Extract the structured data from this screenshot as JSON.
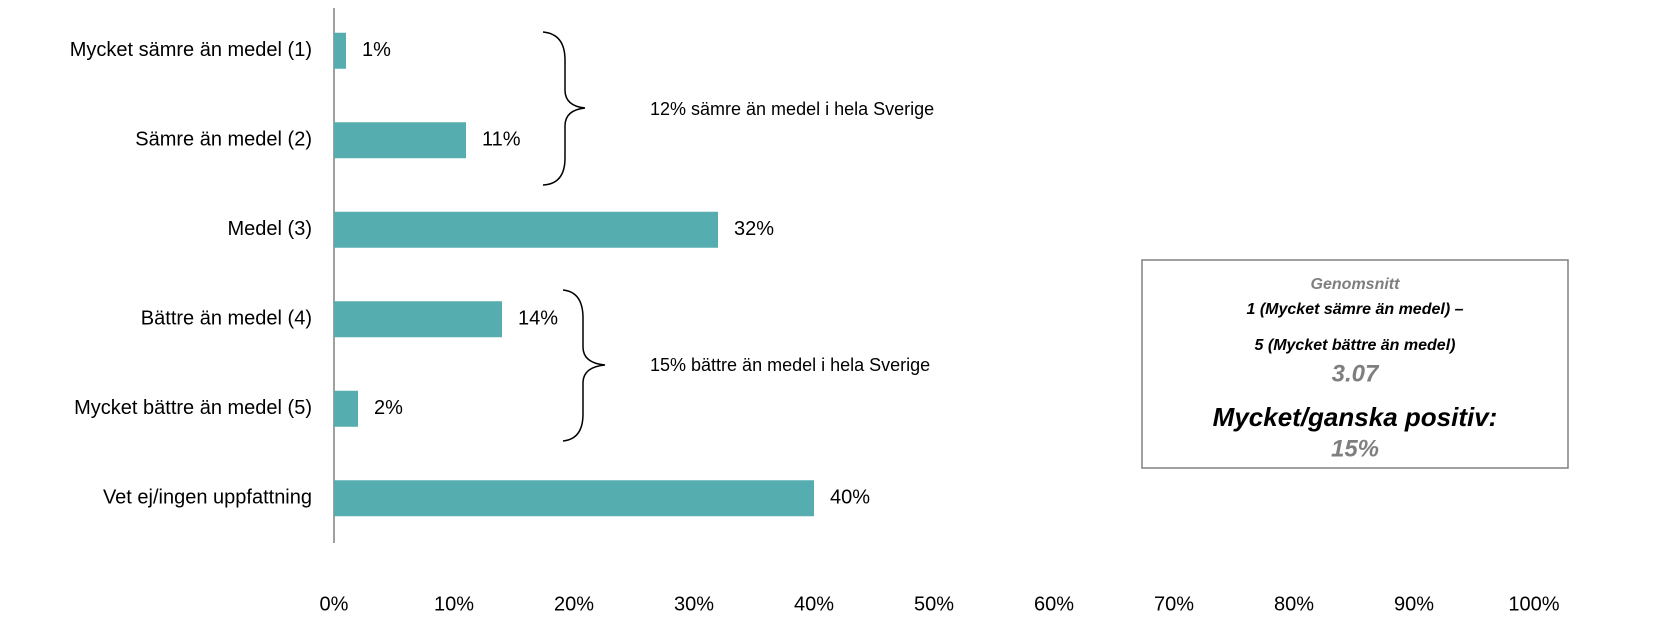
{
  "chart_data": {
    "type": "barh",
    "categories": [
      "Mycket sämre än medel (1)",
      "Sämre än medel (2)",
      "Medel (3)",
      "Bättre än medel (4)",
      "Mycket bättre än medel (5)",
      "Vet ej/ingen uppfattning"
    ],
    "values": [
      1,
      11,
      32,
      14,
      2,
      40
    ],
    "value_labels": [
      "1%",
      "11%",
      "32%",
      "14%",
      "2%",
      "40%"
    ],
    "color": "#55adaf",
    "xlim": [
      0,
      100
    ],
    "xticks": [
      {
        "value": 0,
        "label": "0%"
      },
      {
        "value": 10,
        "label": "10%"
      },
      {
        "value": 20,
        "label": "20%"
      },
      {
        "value": 30,
        "label": "30%"
      },
      {
        "value": 40,
        "label": "40%"
      },
      {
        "value": 50,
        "label": "50%"
      },
      {
        "value": 60,
        "label": "60%"
      },
      {
        "value": 70,
        "label": "70%"
      },
      {
        "value": 80,
        "label": "80%"
      },
      {
        "value": 90,
        "label": "90%"
      },
      {
        "value": 100,
        "label": "100%"
      }
    ],
    "annotations": [
      "12% sämre än medel i hela Sverige",
      "15% bättre än medel i hela Sverige"
    ],
    "summary_box": {
      "heading": "Genomsnitt",
      "line1": "1 (Mycket sämre än medel) –",
      "line2": "5 (Mycket bättre än medel)",
      "mean": "3.07",
      "positive_label": "Mycket/ganska positiv:",
      "positive_value": "15%"
    }
  }
}
